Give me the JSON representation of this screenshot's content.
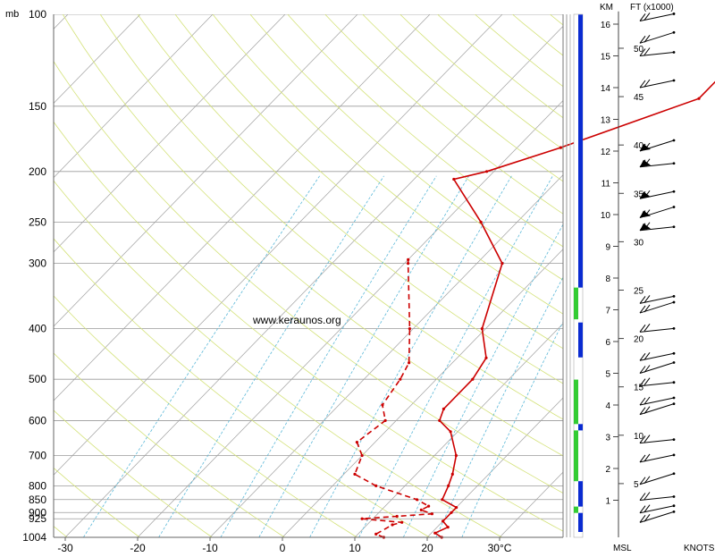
{
  "header": {
    "pressure_unit": "mb",
    "km_label": "KM",
    "ft_label": "FT (x1000)"
  },
  "watermark": "www.keraunos.org",
  "footer": {
    "msl_label": "MSL",
    "knots_label": "KNOTS"
  },
  "colors": {
    "temperature": "#cc0000",
    "dewpoint": "#cc0000",
    "isobar": "#9a9a9a",
    "dry_adiabat": "#d4e27a",
    "mixing_ratio": "#5bb8d8",
    "skewed_isotherm": "#a0a0a0",
    "bar_blue": "#0a2bd1",
    "bar_green": "#33cc33"
  },
  "chart_data": {
    "type": "line",
    "title": "",
    "subtitle": "",
    "chart_kind": "skew-T log-p sounding",
    "y_scale": "log",
    "ylim": [
      1004,
      100
    ],
    "xlim": [
      -32,
      40
    ],
    "pressure_ticks": [
      100,
      150,
      200,
      250,
      300,
      400,
      500,
      600,
      700,
      800,
      850,
      900,
      925,
      1004
    ],
    "temperature_ticks": [
      "-30",
      "-20",
      "-10",
      "0",
      "10",
      "20",
      "30°C"
    ],
    "temperature_tick_values": [
      -30,
      -20,
      -10,
      0,
      10,
      20,
      30
    ],
    "km_ticks": [
      1,
      2,
      3,
      4,
      5,
      6,
      7,
      8,
      9,
      10,
      11,
      12,
      13,
      14,
      15,
      16
    ],
    "ft_ticks": [
      5,
      10,
      15,
      20,
      25,
      30,
      35,
      40,
      45,
      50
    ],
    "series": [
      {
        "role": "temperature",
        "style": "solid",
        "points": [
          [
            22.0,
            1004
          ],
          [
            20.5,
            985
          ],
          [
            21.5,
            960
          ],
          [
            20.0,
            935
          ],
          [
            20.0,
            900
          ],
          [
            20.0,
            880
          ],
          [
            17.0,
            850
          ],
          [
            16.0,
            800
          ],
          [
            15.0,
            760
          ],
          [
            13.0,
            700
          ],
          [
            9.0,
            630
          ],
          [
            6.0,
            600
          ],
          [
            5.0,
            570
          ],
          [
            5.0,
            500
          ],
          [
            4.0,
            455
          ],
          [
            -0.5,
            400
          ],
          [
            -6.5,
            300
          ],
          [
            -15.0,
            250
          ],
          [
            -24.5,
            207
          ],
          [
            -21.0,
            200
          ],
          [
            -14.0,
            180
          ],
          [
            -1.5,
            145
          ],
          [
            -1.5,
            125
          ],
          [
            -1.0,
            110
          ],
          [
            -0.5,
            101
          ],
          [
            0.5,
            100
          ]
        ]
      },
      {
        "role": "dewpoint",
        "style": "dashed",
        "points": [
          [
            14.0,
            1004
          ],
          [
            12.5,
            990
          ],
          [
            13.5,
            950
          ],
          [
            14.5,
            940
          ],
          [
            8.5,
            925
          ],
          [
            13.0,
            915
          ],
          [
            17.5,
            905
          ],
          [
            15.5,
            890
          ],
          [
            16.0,
            875
          ],
          [
            13.5,
            850
          ],
          [
            6.0,
            800
          ],
          [
            1.5,
            760
          ],
          [
            0.0,
            700
          ],
          [
            -2.5,
            660
          ],
          [
            -1.5,
            600
          ],
          [
            -4.0,
            560
          ],
          [
            -5.0,
            500
          ],
          [
            -6.0,
            465
          ],
          [
            -10.5,
            400
          ],
          [
            -19.5,
            300
          ],
          [
            -20.0,
            295
          ]
        ]
      }
    ],
    "bars": [
      {
        "color": "blue",
        "from_km": 0.0,
        "to_km": 0.6
      },
      {
        "color": "green",
        "from_km": 0.6,
        "to_km": 0.8
      },
      {
        "color": "blue",
        "from_km": 0.8,
        "to_km": 1.6
      },
      {
        "color": "green",
        "from_km": 1.6,
        "to_km": 3.2
      },
      {
        "color": "blue",
        "from_km": 3.2,
        "to_km": 3.4
      },
      {
        "color": "green",
        "from_km": 3.4,
        "to_km": 4.8
      },
      {
        "color": "blue",
        "from_km": 5.5,
        "to_km": 6.6
      },
      {
        "color": "green",
        "from_km": 6.7,
        "to_km": 7.7
      },
      {
        "color": "blue",
        "from_km": 7.7,
        "to_km": 16.3
      }
    ],
    "wind_barb_km": [
      0.3,
      0.6,
      1.0,
      1.5,
      2.2,
      2.8,
      3.7,
      4.0,
      4.6,
      5.0,
      5.4,
      6.3,
      6.9,
      7.2,
      9.5,
      9.9,
      10.5,
      11.5,
      12.0,
      14.0,
      15.0,
      15.4,
      16.1
    ]
  }
}
